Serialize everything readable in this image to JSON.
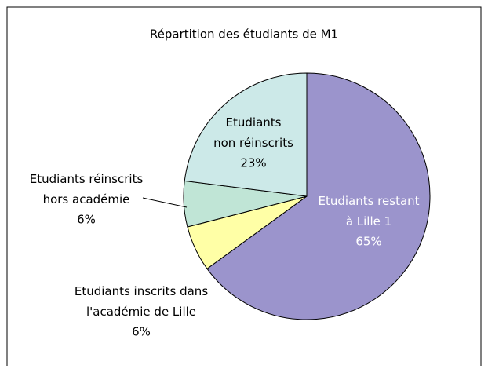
{
  "chart_data": {
    "type": "pie",
    "title": "Répartition des étudiants de M1",
    "categories": [
      "Etudiants restant\nà Lille 1",
      "Etudiants inscrits dans\nl'académie de Lille",
      "Etudiants réinscrits\nhors académie",
      "Etudiants\nnon réinscrits"
    ],
    "values": [
      65,
      6,
      6,
      23
    ],
    "value_labels": [
      "65%",
      "6%",
      "6%",
      "23%"
    ],
    "colors": [
      "#9b94cc",
      "#ffffa6",
      "#c0e5d6",
      "#cce9e8"
    ]
  }
}
